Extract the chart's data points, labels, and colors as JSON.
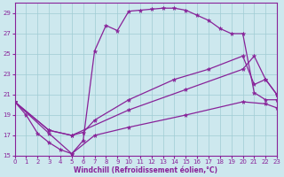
{
  "xlabel": "Windchill (Refroidissement éolien,°C)",
  "bg_color": "#cde8ee",
  "grid_color": "#a0ccd4",
  "line_color": "#882299",
  "xlim": [
    0,
    23
  ],
  "ylim": [
    15,
    30
  ],
  "xticks": [
    0,
    1,
    2,
    3,
    4,
    5,
    6,
    7,
    8,
    9,
    10,
    11,
    12,
    13,
    14,
    15,
    16,
    17,
    18,
    19,
    20,
    21,
    22,
    23
  ],
  "yticks": [
    15,
    17,
    19,
    21,
    23,
    25,
    27,
    29
  ],
  "series": [
    [
      [
        0,
        20.3
      ],
      [
        1,
        19.0
      ],
      [
        2,
        17.2
      ],
      [
        3,
        16.3
      ],
      [
        4,
        15.6
      ],
      [
        5,
        15.2
      ],
      [
        6,
        16.5
      ],
      [
        7,
        25.3
      ],
      [
        8,
        27.8
      ],
      [
        9,
        27.3
      ],
      [
        10,
        29.2
      ],
      [
        11,
        29.3
      ],
      [
        12,
        29.4
      ],
      [
        13,
        29.5
      ],
      [
        14,
        29.5
      ],
      [
        15,
        29.3
      ],
      [
        16,
        28.8
      ],
      [
        17,
        28.3
      ],
      [
        18,
        27.5
      ],
      [
        19,
        27.0
      ],
      [
        20,
        27.0
      ],
      [
        21,
        21.2
      ],
      [
        22,
        20.5
      ],
      [
        23,
        20.5
      ]
    ],
    [
      [
        0,
        20.3
      ],
      [
        3,
        17.2
      ],
      [
        5,
        15.2
      ],
      [
        7,
        17.0
      ],
      [
        10,
        17.8
      ],
      [
        15,
        19.0
      ],
      [
        20,
        20.3
      ],
      [
        22,
        20.1
      ],
      [
        23,
        19.7
      ]
    ],
    [
      [
        0,
        20.3
      ],
      [
        3,
        17.5
      ],
      [
        5,
        17.0
      ],
      [
        6,
        17.3
      ],
      [
        7,
        18.5
      ],
      [
        10,
        20.5
      ],
      [
        14,
        22.5
      ],
      [
        17,
        23.5
      ],
      [
        20,
        24.8
      ],
      [
        21,
        22.0
      ],
      [
        22,
        22.5
      ],
      [
        23,
        21.0
      ]
    ],
    [
      [
        0,
        20.3
      ],
      [
        3,
        17.5
      ],
      [
        5,
        17.0
      ],
      [
        10,
        19.5
      ],
      [
        15,
        21.5
      ],
      [
        20,
        23.5
      ],
      [
        21,
        24.8
      ],
      [
        22,
        22.5
      ],
      [
        23,
        21.0
      ]
    ]
  ]
}
